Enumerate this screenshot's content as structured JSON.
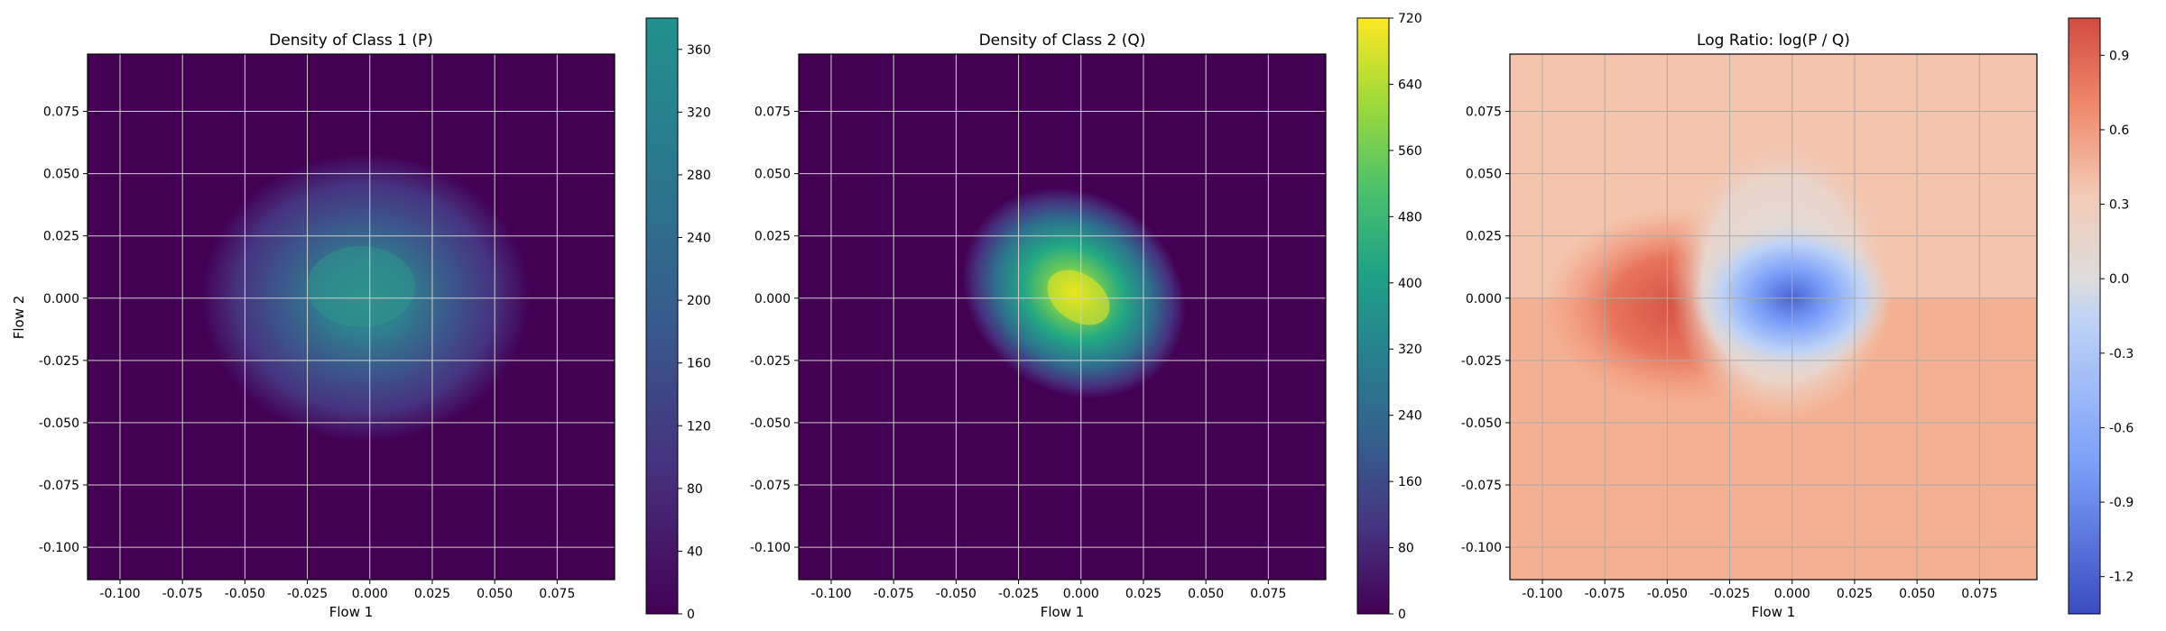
{
  "chart_data": [
    {
      "type": "heatmap",
      "title": "Density of Class 1 (P)",
      "xlabel": "Flow 1",
      "ylabel": "Flow 2",
      "xlim": [
        -0.113,
        0.098
      ],
      "ylim": [
        -0.113,
        0.098
      ],
      "x_ticks": [
        "-0.100",
        "-0.075",
        "-0.050",
        "-0.025",
        "0.000",
        "0.025",
        "0.050",
        "0.075"
      ],
      "y_ticks": [
        "-0.100",
        "-0.075",
        "-0.050",
        "-0.025",
        "0.000",
        "0.025",
        "0.050",
        "0.075"
      ],
      "grid": true,
      "colormap": "viridis",
      "colorbar": {
        "min": 0,
        "max": 380,
        "ticks": [
          "0",
          "40",
          "80",
          "120",
          "160",
          "200",
          "240",
          "280",
          "320",
          "360"
        ]
      },
      "peak": {
        "x": 0.0,
        "y": 0.0,
        "value": 300
      }
    },
    {
      "type": "heatmap",
      "title": "Density of Class 2 (Q)",
      "xlabel": "Flow 1",
      "ylabel": "",
      "xlim": [
        -0.113,
        0.098
      ],
      "ylim": [
        -0.113,
        0.098
      ],
      "x_ticks": [
        "-0.100",
        "-0.075",
        "-0.050",
        "-0.025",
        "0.000",
        "0.025",
        "0.050",
        "0.075"
      ],
      "y_ticks": [
        "-0.100",
        "-0.075",
        "-0.050",
        "-0.025",
        "0.000",
        "0.025",
        "0.050",
        "0.075"
      ],
      "grid": true,
      "colormap": "viridis",
      "colorbar": {
        "min": 0,
        "max": 720,
        "ticks": [
          "0",
          "80",
          "160",
          "240",
          "320",
          "400",
          "480",
          "560",
          "640",
          "720"
        ]
      },
      "peak": {
        "x": -0.003,
        "y": -0.003,
        "value": 700
      }
    },
    {
      "type": "heatmap",
      "title": "Log Ratio: log(P / Q)",
      "xlabel": "Flow 1",
      "ylabel": "",
      "xlim": [
        -0.113,
        0.098
      ],
      "ylim": [
        -0.113,
        0.098
      ],
      "x_ticks": [
        "-0.100",
        "-0.075",
        "-0.050",
        "-0.025",
        "0.000",
        "0.025",
        "0.050",
        "0.075"
      ],
      "y_ticks": [
        "-0.100",
        "-0.075",
        "-0.050",
        "-0.025",
        "0.000",
        "0.025",
        "0.050",
        "0.075"
      ],
      "grid": true,
      "colormap": "coolwarm",
      "colorbar": {
        "min": -1.35,
        "max": 1.05,
        "ticks": [
          "-1.2",
          "-0.9",
          "-0.6",
          "-0.3",
          "0.0",
          "0.3",
          "0.6",
          "0.9"
        ]
      },
      "regions": {
        "background": 0.45,
        "left_lobe": {
          "x": -0.04,
          "y": -0.005,
          "value": 0.85
        },
        "center_low": {
          "x": 0.005,
          "y": -0.005,
          "value": -1.2
        }
      }
    }
  ]
}
